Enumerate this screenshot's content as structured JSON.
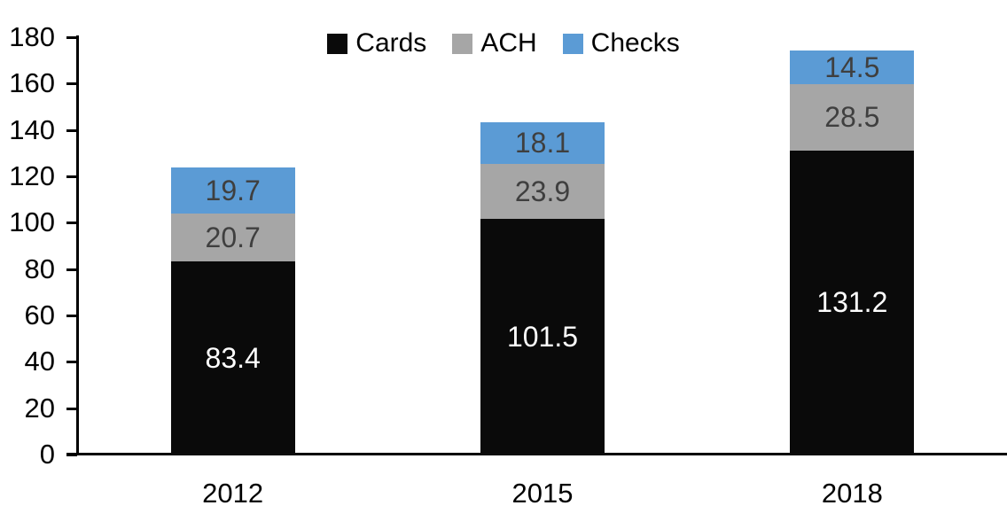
{
  "chart_data": {
    "type": "bar",
    "stacked": true,
    "title": "",
    "xlabel": "",
    "ylabel": "",
    "categories": [
      "2012",
      "2015",
      "2018"
    ],
    "series": [
      {
        "name": "Cards",
        "color": "#0a0a0a",
        "label_color": "#ffffff",
        "values": [
          83.4,
          101.5,
          131.2
        ]
      },
      {
        "name": "ACH",
        "color": "#a6a6a6",
        "label_color": "#3f3f3f",
        "values": [
          20.7,
          23.9,
          28.5
        ]
      },
      {
        "name": "Checks",
        "color": "#5b9bd5",
        "label_color": "#3f3f3f",
        "values": [
          19.7,
          18.1,
          14.5
        ]
      }
    ],
    "ylim": [
      0,
      180
    ],
    "yticks": [
      0,
      20,
      40,
      60,
      80,
      100,
      120,
      140,
      160,
      180
    ],
    "grid": false,
    "value_labels": true,
    "legend_position": "top-center",
    "axis_color": "#000000",
    "background_color": "#ffffff"
  }
}
